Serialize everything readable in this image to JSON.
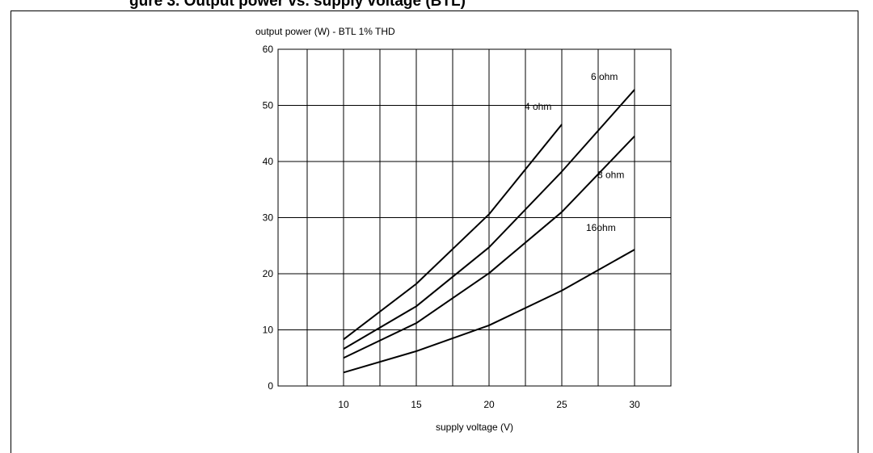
{
  "figure_title": "gure 3. Output power vs. supply voltage (BTL)",
  "chart_data": {
    "type": "line",
    "title": "output power (W) - BTL 1% THD",
    "xlabel": "supply voltage (V)",
    "ylabel": "output power (W) - BTL 1% THD",
    "xlim": [
      5.5,
      32.5
    ],
    "ylim": [
      0,
      60
    ],
    "xticks": [
      10,
      15,
      20,
      25,
      30
    ],
    "yticks": [
      0,
      10,
      20,
      30,
      40,
      50,
      60
    ],
    "grid": true,
    "series": [
      {
        "name": "4 ohm",
        "x": [
          10,
          15,
          20,
          25
        ],
        "y": [
          8.3,
          18.2,
          30.6,
          46.6
        ]
      },
      {
        "name": "6 ohm",
        "x": [
          10,
          15,
          20,
          25,
          30
        ],
        "y": [
          6.6,
          14.2,
          24.7,
          38.2,
          52.8
        ]
      },
      {
        "name": "8 ohm",
        "x": [
          10,
          15,
          20,
          25,
          30
        ],
        "y": [
          5.0,
          11.2,
          20.1,
          31.0,
          44.5
        ]
      },
      {
        "name": "16ohm",
        "x": [
          10,
          15,
          20,
          25,
          30
        ],
        "y": [
          2.4,
          6.2,
          10.8,
          17.0,
          24.3
        ]
      }
    ]
  }
}
